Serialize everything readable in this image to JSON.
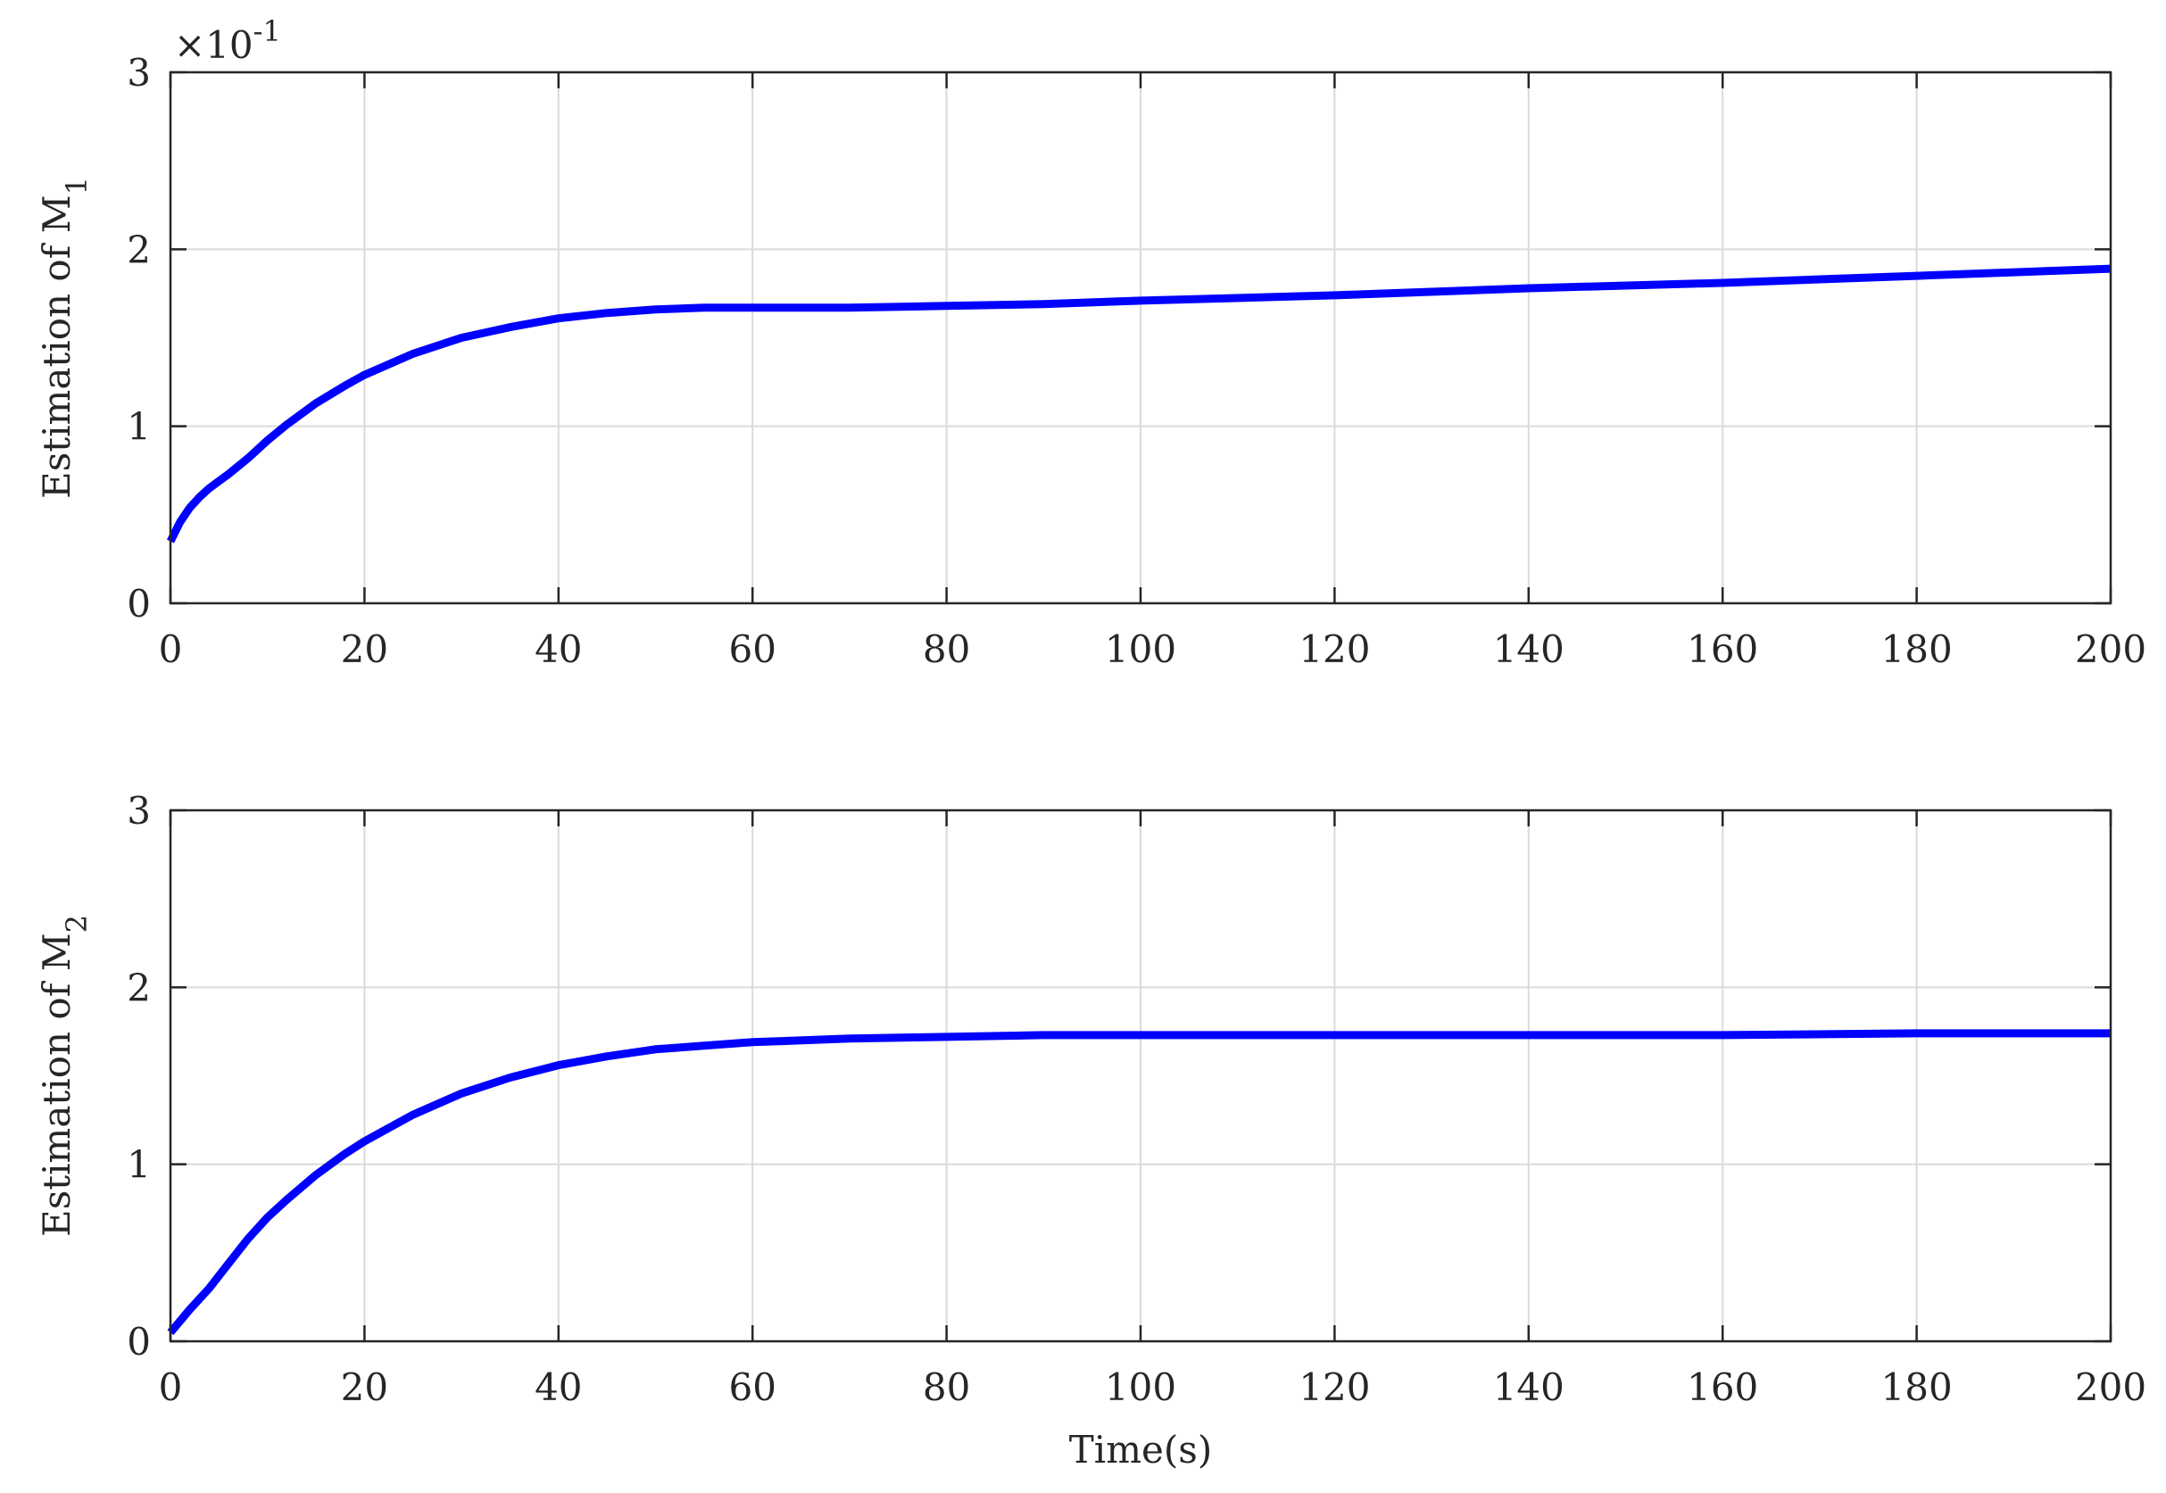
{
  "chart_data": [
    {
      "type": "line",
      "ylabel": "Estimation of M",
      "ylabel_sub": "1",
      "xlabel": "",
      "multiplier_base": "×10",
      "multiplier_exp": "-1",
      "xlim": [
        0,
        200
      ],
      "ylim": [
        0,
        3
      ],
      "xticks": [
        0,
        20,
        40,
        60,
        80,
        100,
        120,
        140,
        160,
        180,
        200
      ],
      "yticks": [
        0,
        1,
        2,
        3
      ],
      "grid": true,
      "color": "#0000ff",
      "series": [
        {
          "x": [
            0,
            1,
            2,
            3,
            4,
            5,
            6,
            8,
            10,
            12,
            15,
            18,
            20,
            25,
            30,
            35,
            40,
            45,
            50,
            55,
            60,
            70,
            80,
            90,
            100,
            120,
            140,
            160,
            180,
            200
          ],
          "values": [
            0.35,
            0.46,
            0.54,
            0.6,
            0.65,
            0.69,
            0.73,
            0.82,
            0.92,
            1.01,
            1.13,
            1.23,
            1.29,
            1.41,
            1.5,
            1.56,
            1.61,
            1.64,
            1.66,
            1.67,
            1.67,
            1.67,
            1.68,
            1.69,
            1.71,
            1.74,
            1.78,
            1.81,
            1.85,
            1.89
          ]
        }
      ]
    },
    {
      "type": "line",
      "ylabel": "Estimation of M",
      "ylabel_sub": "2",
      "xlabel": "Time(s)",
      "xlim": [
        0,
        200
      ],
      "ylim": [
        0,
        3
      ],
      "xticks": [
        0,
        20,
        40,
        60,
        80,
        100,
        120,
        140,
        160,
        180,
        200
      ],
      "yticks": [
        0,
        1,
        2,
        3
      ],
      "grid": true,
      "color": "#0000ff",
      "series": [
        {
          "x": [
            0,
            2,
            4,
            6,
            8,
            10,
            12,
            15,
            18,
            20,
            25,
            30,
            35,
            40,
            45,
            50,
            55,
            60,
            70,
            80,
            90,
            100,
            120,
            140,
            160,
            180,
            200
          ],
          "values": [
            0.05,
            0.18,
            0.3,
            0.44,
            0.58,
            0.7,
            0.8,
            0.94,
            1.06,
            1.13,
            1.28,
            1.4,
            1.49,
            1.56,
            1.61,
            1.65,
            1.67,
            1.69,
            1.71,
            1.72,
            1.73,
            1.73,
            1.73,
            1.73,
            1.73,
            1.74,
            1.74
          ]
        }
      ]
    }
  ]
}
